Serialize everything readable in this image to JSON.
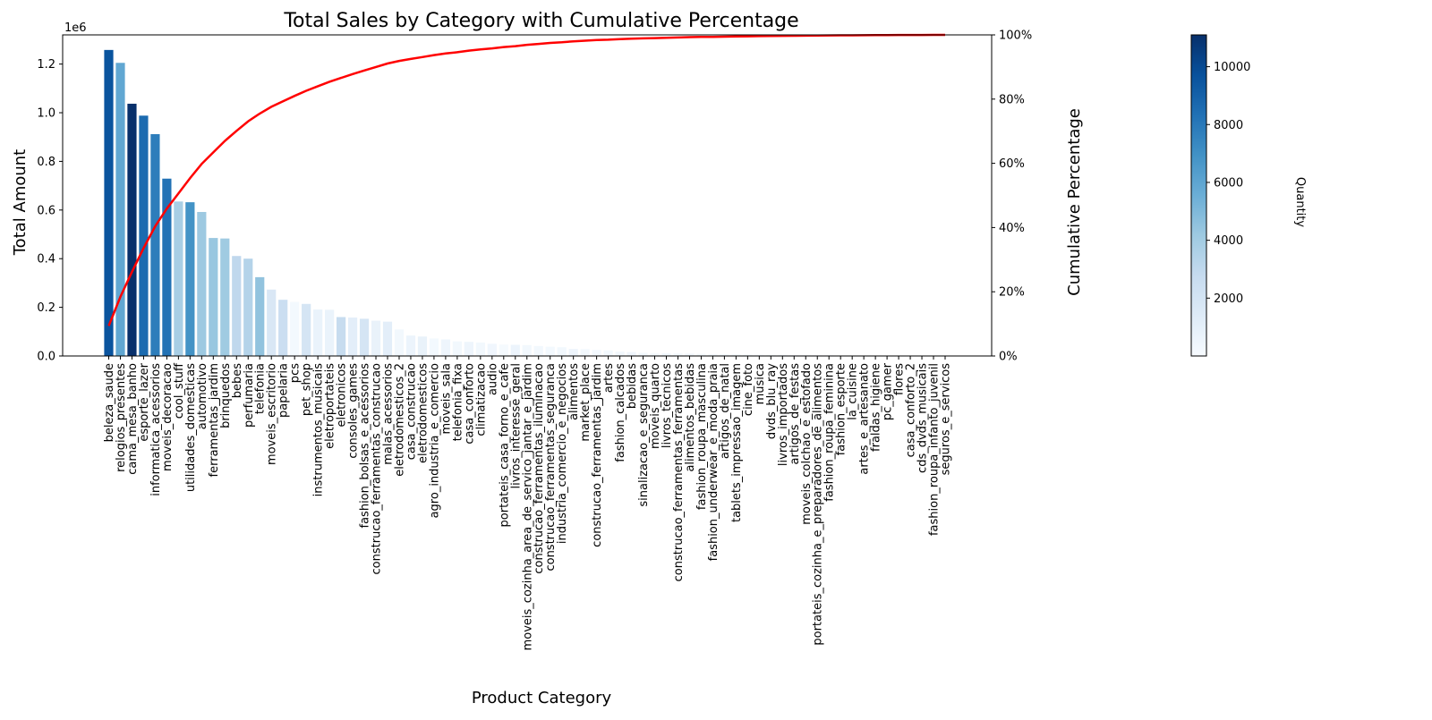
{
  "chart_data": {
    "type": "bar",
    "title": "Total Sales by Category with Cumulative Percentage",
    "xlabel": "Product Category",
    "ylabel": "Total Amount",
    "y2label": "Cumulative Percentage",
    "y_offset_label": "1e6",
    "ylim": [
      0,
      1.32
    ],
    "y2lim": [
      0,
      100
    ],
    "y_ticks": [
      "0.0",
      "0.2",
      "0.4",
      "0.6",
      "0.8",
      "1.0",
      "1.2"
    ],
    "y2_ticks": [
      "0%",
      "20%",
      "40%",
      "60%",
      "80%",
      "100%"
    ],
    "colorbar": {
      "label": "Quantity",
      "range": [
        0,
        11100
      ],
      "ticks": [
        "2000",
        "4000",
        "6000",
        "8000",
        "10000"
      ],
      "colormap": "Blues"
    },
    "line_color": "#ff0000",
    "categories": [
      "beleza_saude",
      "relogios_presentes",
      "cama_mesa_banho",
      "esporte_lazer",
      "informatica_acessorios",
      "moveis_decoracao",
      "cool_stuff",
      "utilidades_domesticas",
      "automotivo",
      "ferramentas_jardim",
      "brinquedos",
      "bebes",
      "perfumaria",
      "telefonia",
      "moveis_escritorio",
      "papelaria",
      "pcs",
      "pet_shop",
      "instrumentos_musicais",
      "eletroportateis",
      "eletronicos",
      "consoles_games",
      "fashion_bolsas_e_acessorios",
      "construcao_ferramentas_construcao",
      "malas_acessorios",
      "eletrodomesticos_2",
      "casa_construcao",
      "eletrodomesticos",
      "agro_industria_e_comercio",
      "moveis_sala",
      "telefonia_fixa",
      "casa_conforto",
      "climatizacao",
      "audio",
      "portateis_casa_forno_e_cafe",
      "livros_interesse_geral",
      "moveis_cozinha_area_de_servico_jantar_e_jardim",
      "construcao_ferramentas_iluminacao",
      "construcao_ferramentas_seguranca",
      "industria_comercio_e_negocios",
      "alimentos",
      "market_place",
      "construcao_ferramentas_jardim",
      "artes",
      "fashion_calcados",
      "bebidas",
      "sinalizacao_e_seguranca",
      "moveis_quarto",
      "livros_tecnicos",
      "construcao_ferramentas_ferramentas",
      "alimentos_bebidas",
      "fashion_roupa_masculina",
      "fashion_underwear_e_moda_praia",
      "artigos_de_natal",
      "tablets_impressao_imagem",
      "cine_foto",
      "musica",
      "dvds_blu_ray",
      "livros_importados",
      "artigos_de_festas",
      "moveis_colchao_e_estofado",
      "portateis_cozinha_e_preparadores_de_alimentos",
      "fashion_roupa_feminina",
      "fashion_esporte",
      "la_cuisine",
      "artes_e_artesanato",
      "fraldas_higiene",
      "pc_gamer",
      "flores",
      "casa_conforto_2",
      "cds_dvds_musicais",
      "fashion_roupa_infanto_juvenil",
      "seguros_e_servicos"
    ],
    "values": [
      1.258,
      1.205,
      1.037,
      0.988,
      0.912,
      0.729,
      0.635,
      0.632,
      0.592,
      0.485,
      0.483,
      0.411,
      0.4,
      0.324,
      0.273,
      0.231,
      0.222,
      0.214,
      0.191,
      0.19,
      0.16,
      0.158,
      0.153,
      0.145,
      0.141,
      0.109,
      0.084,
      0.08,
      0.072,
      0.068,
      0.06,
      0.058,
      0.055,
      0.05,
      0.047,
      0.046,
      0.045,
      0.041,
      0.038,
      0.036,
      0.029,
      0.028,
      0.025,
      0.023,
      0.018,
      0.016,
      0.013,
      0.012,
      0.011,
      0.011,
      0.01,
      0.009,
      0.008,
      0.007,
      0.007,
      0.006,
      0.006,
      0.005,
      0.005,
      0.004,
      0.004,
      0.003,
      0.003,
      0.002,
      0.002,
      0.002,
      0.002,
      0.002,
      0.001,
      0.001,
      0.001,
      0.001,
      0.0003
    ],
    "quantities": [
      9600,
      5900,
      11100,
      8600,
      7800,
      8300,
      3800,
      6900,
      4200,
      4300,
      4100,
      3000,
      3400,
      4500,
      1700,
      2500,
      200,
      1900,
      700,
      700,
      2700,
      1100,
      1900,
      800,
      1100,
      300,
      600,
      800,
      200,
      500,
      300,
      500,
      300,
      400,
      100,
      600,
      300,
      300,
      200,
      300,
      500,
      300,
      200,
      200,
      300,
      400,
      200,
      100,
      300,
      100,
      300,
      100,
      100,
      200,
      100,
      100,
      50,
      100,
      60,
      50,
      40,
      20,
      50,
      30,
      20,
      30,
      40,
      10,
      40,
      10,
      10,
      10,
      5
    ],
    "cumulative_percent": [
      9.4,
      18.4,
      26.2,
      33.6,
      40.4,
      45.9,
      50.6,
      55.4,
      59.8,
      63.4,
      67.0,
      70.1,
      73.1,
      75.5,
      77.6,
      79.3,
      81.0,
      82.6,
      84.0,
      85.4,
      86.6,
      87.8,
      88.9,
      90.0,
      91.1,
      91.9,
      92.5,
      93.1,
      93.7,
      94.2,
      94.6,
      95.1,
      95.5,
      95.8,
      96.2,
      96.5,
      96.9,
      97.2,
      97.5,
      97.7,
      98.0,
      98.2,
      98.4,
      98.5,
      98.7,
      98.8,
      98.9,
      99.0,
      99.1,
      99.2,
      99.3,
      99.35,
      99.4,
      99.45,
      99.5,
      99.55,
      99.6,
      99.65,
      99.7,
      99.73,
      99.76,
      99.79,
      99.82,
      99.85,
      99.87,
      99.9,
      99.92,
      99.94,
      99.96,
      99.97,
      99.98,
      99.99,
      100.0
    ]
  }
}
